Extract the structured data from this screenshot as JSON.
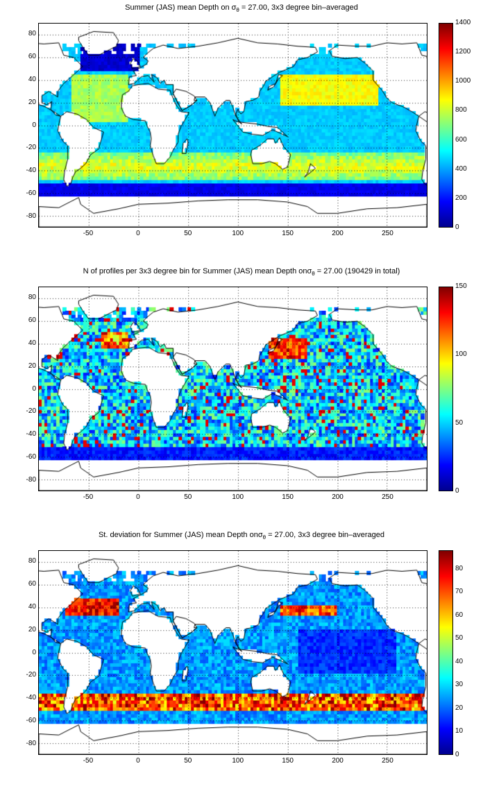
{
  "panels": [
    {
      "title_prefix": "Summer (JAS) mean Depth on σ",
      "title_sub": "θ",
      "title_suffix": " = 27.00, 3x3 degree bin–averaged",
      "colorbar": {
        "min": 0,
        "max": 1400,
        "ticks": [
          "0",
          "200",
          "400",
          "600",
          "800",
          "1000",
          "1200",
          "1400"
        ]
      },
      "field": "mean-depth"
    },
    {
      "title_prefix": "N of profiles per 3x3 degree bin for Summer (JAS) mean Depth onσ",
      "title_sub": "θ",
      "title_suffix": " = 27.00 (190429 in total)",
      "colorbar": {
        "min": 0,
        "max": 150,
        "ticks": [
          "0",
          "50",
          "100",
          "150"
        ]
      },
      "field": "profile-count"
    },
    {
      "title_prefix": "St. deviation for Summer (JAS) mean Depth onσ",
      "title_sub": "θ",
      "title_suffix": " = 27.00, 3x3 degree bin–averaged",
      "colorbar": {
        "min": 0,
        "max": 88,
        "ticks": [
          "0",
          "10",
          "20",
          "30",
          "40",
          "50",
          "60",
          "70",
          "80"
        ]
      },
      "field": "std-deviation"
    }
  ],
  "axes": {
    "x_ticks": [
      "-50",
      "0",
      "50",
      "100",
      "150",
      "200",
      "250"
    ],
    "y_ticks": [
      "80",
      "60",
      "40",
      "20",
      "0",
      "-20",
      "-40",
      "-60",
      "-80"
    ],
    "x_range": [
      -100,
      290
    ],
    "y_range": [
      -90,
      90
    ]
  },
  "colormap": "jet",
  "land_color": "#ffffff",
  "grid": "dotted"
}
